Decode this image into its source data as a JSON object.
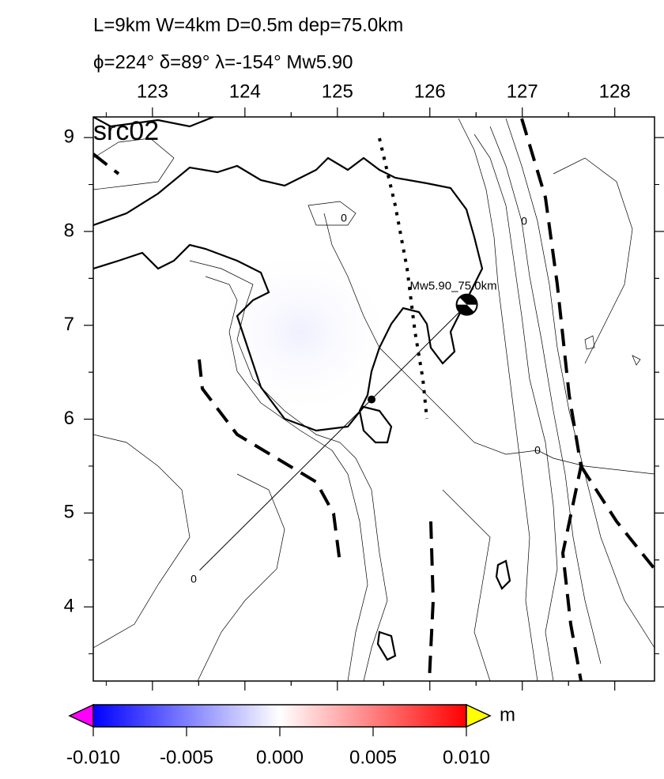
{
  "header": {
    "line1": "L=9km W=4km D=0.5m dep=75.0km",
    "line2": "ϕ=224° δ=89° λ=-154° Mw5.90"
  },
  "map": {
    "title": "src02",
    "xlim": [
      122.36,
      128.43
    ],
    "ylim": [
      3.21,
      9.22
    ],
    "xticks": [
      123,
      124,
      125,
      126,
      127,
      128
    ],
    "yticks": [
      4,
      5,
      6,
      7,
      8,
      9
    ],
    "fault_trace": {
      "lon": [
        123.51,
        126.4
      ],
      "lat": [
        4.39,
        7.22
      ]
    },
    "fault_center": {
      "lon": 125.37,
      "lat": 6.21
    },
    "hypocenter": {
      "lon": 126.4,
      "lat": 7.22,
      "label": "Mw5.90_75.0km"
    },
    "contour_labels": [
      "0",
      "0",
      "0",
      "0"
    ]
  },
  "colorbar": {
    "lim": [
      -0.01,
      0.01
    ],
    "ticks": [
      {
        "value": -0.01,
        "label": "-0.010"
      },
      {
        "value": -0.005,
        "label": "-0.005"
      },
      {
        "value": 0,
        "label": "0.000"
      },
      {
        "value": 0.005,
        "label": "0.005"
      },
      {
        "value": 0.01,
        "label": "0.010"
      }
    ],
    "unit": "m",
    "low_color": "#0000ff",
    "mid_color": "#ffffff",
    "high_color": "#ff0000",
    "under_color": "#ff00ff",
    "over_color": "#ffff00"
  }
}
